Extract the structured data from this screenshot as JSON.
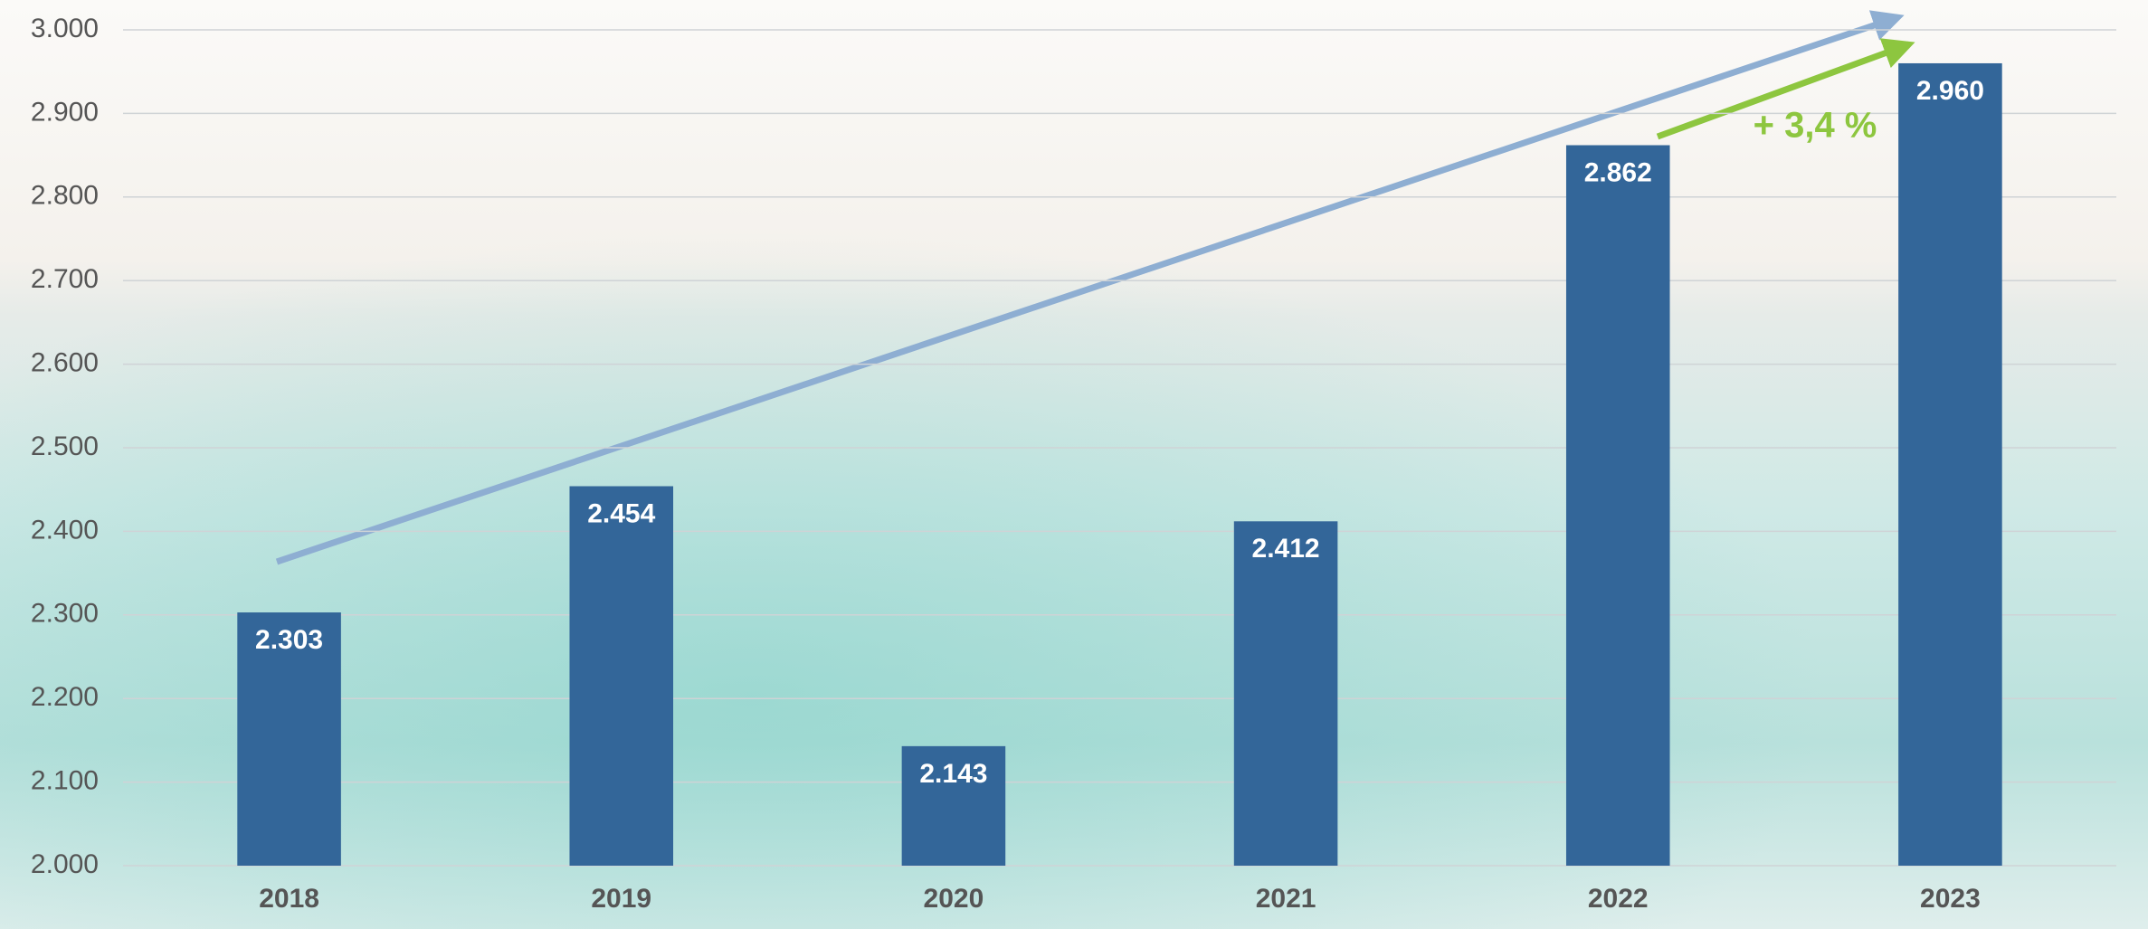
{
  "chart_data": {
    "type": "bar",
    "categories": [
      "2018",
      "2019",
      "2020",
      "2021",
      "2022",
      "2023"
    ],
    "values": [
      2303,
      2454,
      2143,
      2412,
      2862,
      2960
    ],
    "value_labels": [
      "2.303",
      "2.454",
      "2.143",
      "2.412",
      "2.862",
      "2.960"
    ],
    "color": "#336699",
    "ylim": [
      2000,
      3000
    ],
    "yticks": [
      {
        "value": 2000,
        "label": "2.000"
      },
      {
        "value": 2100,
        "label": "2.100"
      },
      {
        "value": 2200,
        "label": "2.200"
      },
      {
        "value": 2300,
        "label": "2.300"
      },
      {
        "value": 2400,
        "label": "2.400"
      },
      {
        "value": 2500,
        "label": "2.500"
      },
      {
        "value": 2600,
        "label": "2.600"
      },
      {
        "value": 2700,
        "label": "2.700"
      },
      {
        "value": 2800,
        "label": "2.800"
      },
      {
        "value": 2900,
        "label": "2.900"
      },
      {
        "value": 3000,
        "label": "3.000"
      }
    ],
    "grid": true,
    "annotation": "+ 3,4 %"
  }
}
